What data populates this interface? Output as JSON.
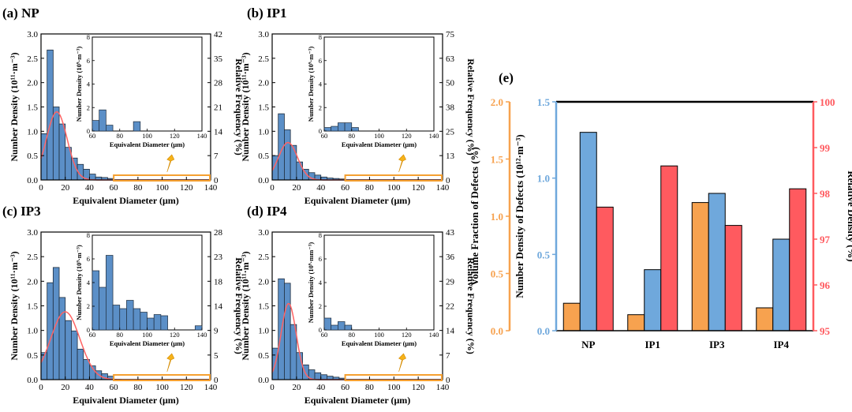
{
  "chart_data": [
    {
      "id": "NP",
      "type": "bar",
      "panel_label": "(a) NP",
      "xlabel": "Equivalent Diameter (μm)",
      "ylabel": "Number Density (10¹¹·m⁻³)",
      "y2label": "Relative Frequency (%)",
      "xlim": [
        0,
        140
      ],
      "ylim": [
        0,
        3.0
      ],
      "xticks": [
        0,
        20,
        40,
        60,
        80,
        100,
        120,
        140
      ],
      "yticks": [
        0.0,
        0.5,
        1.0,
        1.5,
        2.0,
        2.5,
        3.0
      ],
      "ytick_labels": [
        "0.0",
        "0.5",
        "1.0",
        "1.5",
        "2.0",
        "2.5",
        "3.0"
      ],
      "y2ticks": [
        "0",
        "7",
        "14",
        "21",
        "28",
        "35",
        "42"
      ],
      "bin_width": 5,
      "bins_start": [
        0,
        5,
        10,
        15,
        20,
        25,
        30,
        35,
        40,
        45,
        50,
        55
      ],
      "values": [
        0.95,
        2.67,
        1.5,
        1.15,
        0.67,
        0.45,
        0.32,
        0.22,
        0.12,
        0.06,
        0.05,
        0.03
      ],
      "fit_curve": {
        "mean": 13,
        "sd": 8.5,
        "peak": 1.4
      },
      "inset": {
        "ylabel": "Number Density (10⁹·m⁻³)",
        "xlabel": "Equivalent Diameter (μm)",
        "xticks": [
          60,
          80,
          100,
          120,
          140
        ],
        "ylim": [
          0,
          8
        ],
        "yticks": [
          0,
          2,
          4,
          6,
          8
        ],
        "bin_width": 5,
        "bins_start": [
          60,
          65,
          70,
          90
        ],
        "values": [
          0.9,
          1.8,
          0.5,
          0.8
        ]
      }
    },
    {
      "id": "IP1",
      "type": "bar",
      "panel_label": "(b) IP1",
      "xlabel": "Equivalent Diameter (μm)",
      "ylabel": "Number Density (10¹¹·m⁻³)",
      "y2label": "Relative Frequency (%)",
      "xlim": [
        0,
        140
      ],
      "ylim": [
        0,
        3.0
      ],
      "xticks": [
        0,
        20,
        40,
        60,
        80,
        100,
        120,
        140
      ],
      "yticks": [
        0.0,
        0.5,
        1.0,
        1.5,
        2.0,
        2.5,
        3.0
      ],
      "ytick_labels": [
        "0.0",
        "0.5",
        "1.0",
        "1.5",
        "2.0",
        "2.5",
        "3.0"
      ],
      "y2ticks": [
        "0",
        "13",
        "25",
        "38",
        "50",
        "63",
        "75"
      ],
      "bin_width": 5,
      "bins_start": [
        0,
        5,
        10,
        15,
        20,
        25,
        30,
        35,
        40,
        45,
        50,
        55
      ],
      "values": [
        0.5,
        1.36,
        1.03,
        0.71,
        0.37,
        0.22,
        0.15,
        0.1,
        0.06,
        0.04,
        0.03,
        0.02
      ],
      "fit_curve": {
        "mean": 13,
        "sd": 7.8,
        "peak": 0.77
      },
      "inset": {
        "ylabel": "Number Density (10⁹·m⁻³)",
        "xlabel": "Equivalent Diameter (μm)",
        "xticks": [
          60,
          80,
          100,
          120,
          140
        ],
        "ylim": [
          0,
          8
        ],
        "yticks": [
          0,
          2,
          4,
          6,
          8
        ],
        "bin_width": 5,
        "bins_start": [
          60,
          65,
          70,
          75,
          80
        ],
        "values": [
          0.3,
          0.4,
          0.7,
          0.7,
          0.3
        ]
      }
    },
    {
      "id": "IP3",
      "type": "bar",
      "panel_label": "(c) IP3",
      "xlabel": "Equivalent Diameter (μm)",
      "ylabel": "Number Density (10¹¹·m⁻³)",
      "y2label": "Relative Frequency (%)",
      "xlim": [
        0,
        140
      ],
      "ylim": [
        0,
        3.0
      ],
      "xticks": [
        0,
        20,
        40,
        60,
        80,
        100,
        120,
        140
      ],
      "yticks": [
        0.0,
        0.5,
        1.0,
        1.5,
        2.0,
        2.5,
        3.0
      ],
      "ytick_labels": [
        "0.0",
        "0.5",
        "1.0",
        "1.5",
        "2.0",
        "2.5",
        "3.0"
      ],
      "y2ticks": [
        "0",
        "5",
        "9",
        "14",
        "18",
        "23",
        "28"
      ],
      "bin_width": 5,
      "bins_start": [
        0,
        5,
        10,
        15,
        20,
        25,
        30,
        35,
        40,
        45,
        50,
        55
      ],
      "values": [
        0.55,
        1.97,
        2.28,
        1.67,
        1.2,
        0.99,
        0.62,
        0.41,
        0.28,
        0.18,
        0.12,
        0.07
      ],
      "fit_curve": {
        "mean": 20,
        "sd": 12,
        "peak": 1.38
      },
      "inset": {
        "ylabel": "Number Density (10⁹·m⁻³)",
        "xlabel": "Equivalent Diameter (μm)",
        "xticks": [
          60,
          80,
          100,
          120,
          140
        ],
        "ylim": [
          0,
          8
        ],
        "yticks": [
          0,
          2,
          4,
          6,
          8
        ],
        "bin_width": 5,
        "bins_start": [
          60,
          65,
          70,
          75,
          80,
          85,
          90,
          95,
          100,
          105,
          110,
          135
        ],
        "values": [
          5.0,
          3.6,
          6.3,
          2.1,
          1.8,
          2.5,
          1.8,
          1.5,
          1.0,
          1.3,
          1.2,
          0.35
        ]
      }
    },
    {
      "id": "IP4",
      "type": "bar",
      "panel_label": "(d) IP4",
      "xlabel": "Equivalent Diameter (μm)",
      "ylabel": "Number Density (10¹¹·m⁻³)",
      "y2label": "Relative Frequency (%)",
      "xlim": [
        0,
        140
      ],
      "ylim": [
        0,
        3.0
      ],
      "xticks": [
        0,
        20,
        40,
        60,
        80,
        100,
        120,
        140
      ],
      "yticks": [
        0.0,
        0.5,
        1.0,
        1.5,
        2.0,
        2.5,
        3.0
      ],
      "ytick_labels": [
        "0.0",
        "0.5",
        "1.0",
        "1.5",
        "2.0",
        "2.5",
        "3.0"
      ],
      "y2ticks": [
        "0",
        "7",
        "14",
        "22",
        "29",
        "36",
        "43"
      ],
      "bin_width": 5,
      "bins_start": [
        0,
        5,
        10,
        15,
        20,
        25,
        30,
        35,
        40,
        45,
        50,
        55
      ],
      "values": [
        0.64,
        2.05,
        1.96,
        1.12,
        0.55,
        0.3,
        0.2,
        0.14,
        0.1,
        0.07,
        0.05,
        0.03
      ],
      "fit_curve": {
        "mean": 13.5,
        "sd": 6.2,
        "peak": 1.55
      },
      "inset": {
        "ylabel": "Number Density (10⁹·mm⁻³)",
        "xlabel": "Equivalent Diameter (μm)",
        "xticks": [
          60,
          80,
          100,
          120,
          140
        ],
        "ylim": [
          0,
          8
        ],
        "yticks": [
          0,
          2,
          4,
          6,
          8
        ],
        "bin_width": 5,
        "bins_start": [
          60,
          65,
          70,
          75
        ],
        "values": [
          1.0,
          0.4,
          0.7,
          0.4
        ]
      }
    },
    {
      "id": "summary",
      "type": "bar",
      "panel_label": "(e)",
      "categories": [
        "NP",
        "IP1",
        "IP3",
        "IP4"
      ],
      "series": [
        {
          "name": "Volume Fraction of Defects (%)",
          "axis": "left-outer",
          "color": "#f7a24f",
          "values": [
            0.24,
            0.14,
            1.12,
            0.2
          ],
          "ylim": [
            0,
            2.0
          ],
          "ticks": [
            "0.0",
            "0.5",
            "1.0",
            "1.5",
            "2.0"
          ]
        },
        {
          "name": "Number Density of Defects (10¹²·m⁻³)",
          "axis": "left-inner",
          "color": "#6fa8dc",
          "values": [
            1.3,
            0.4,
            0.9,
            0.6
          ],
          "ylim": [
            0,
            1.5
          ],
          "ticks": [
            "0.0",
            "0.5",
            "1.0",
            "1.5"
          ]
        },
        {
          "name": "Relative Density (%)",
          "axis": "right",
          "color": "#ff5a5f",
          "values": [
            97.7,
            98.6,
            97.3,
            98.1
          ],
          "ylim": [
            95,
            100
          ],
          "ticks": [
            "95",
            "96",
            "97",
            "98",
            "99",
            "100"
          ]
        }
      ]
    }
  ]
}
